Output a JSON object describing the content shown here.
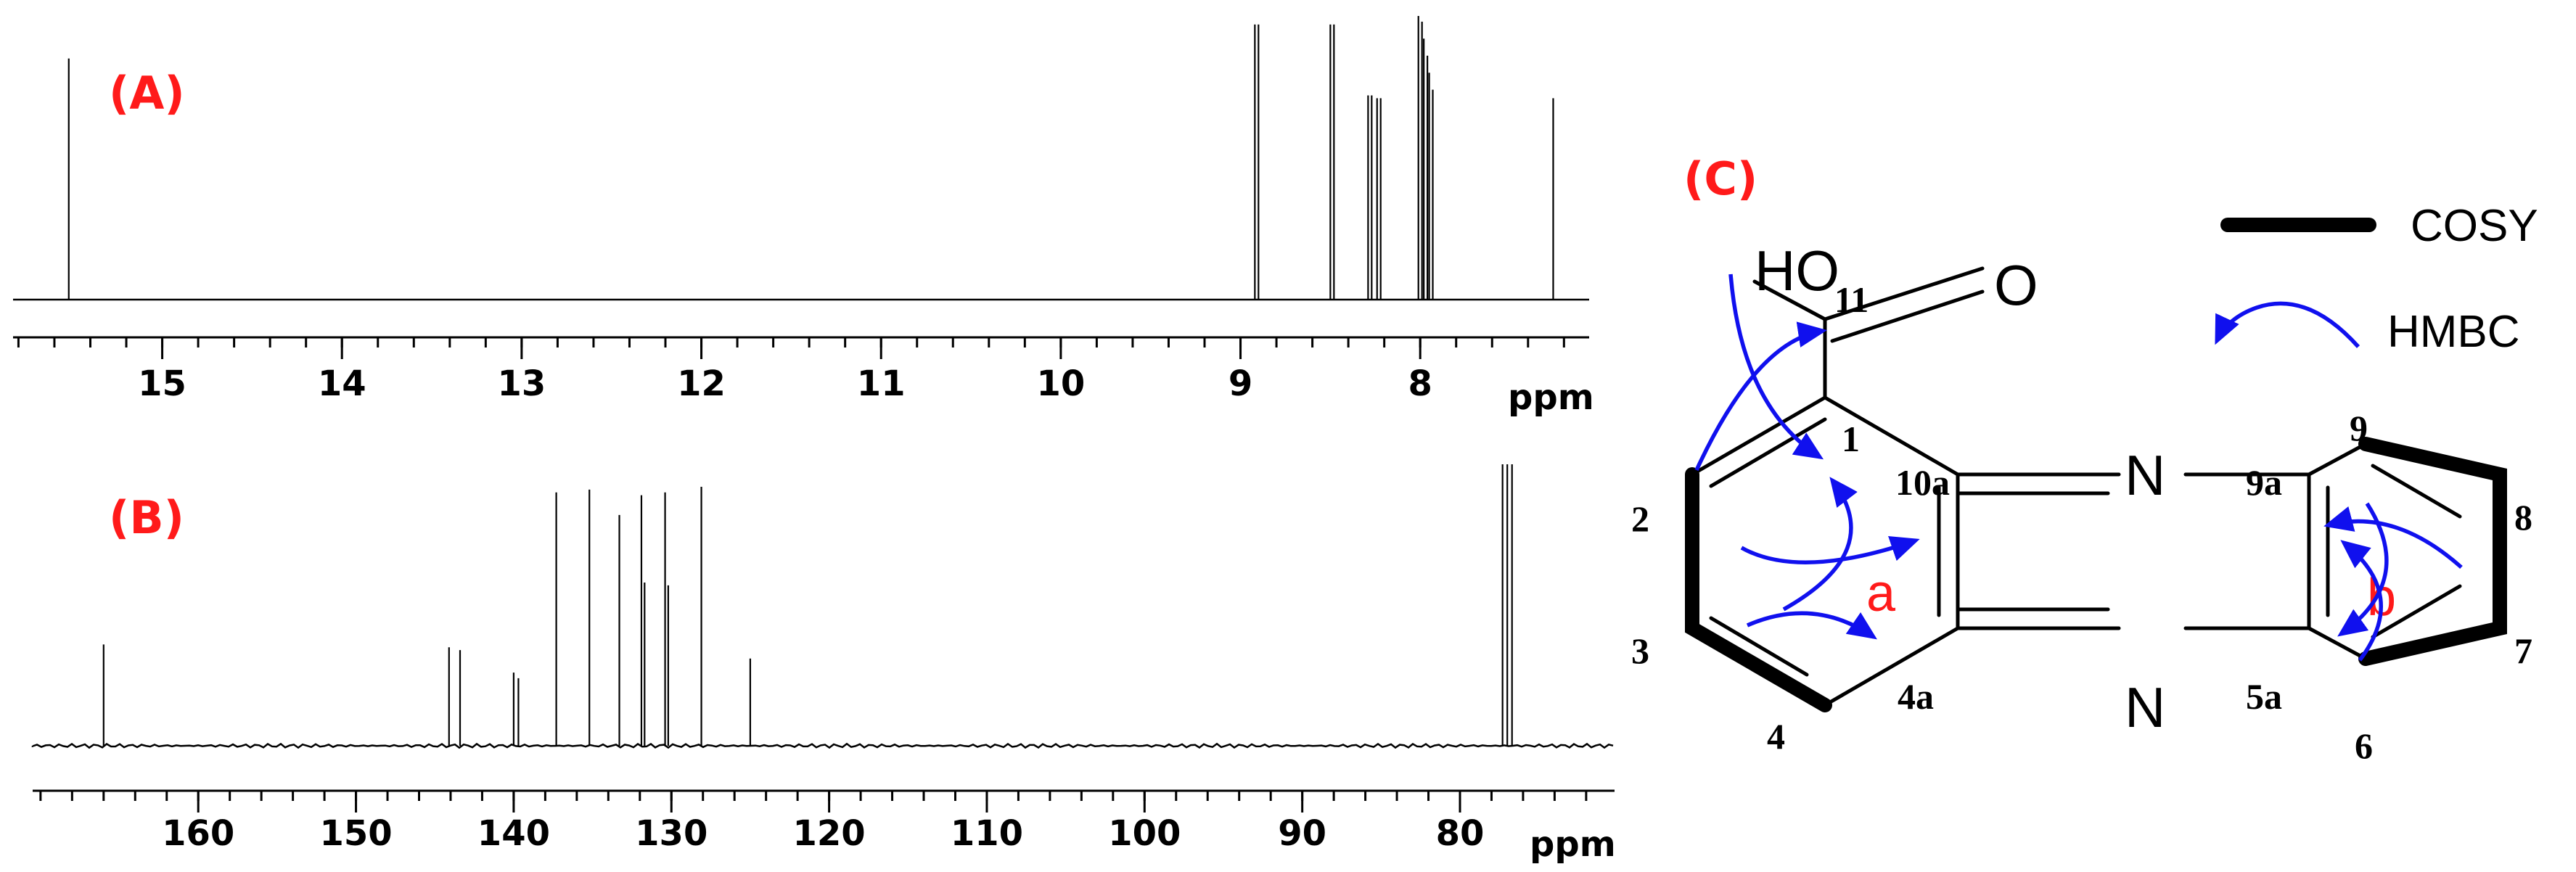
{
  "chart_data": [
    {
      "id": "A",
      "type": "line",
      "panel_label": "(A)",
      "unit": "ppm",
      "axis_reversed": true,
      "xlim": [
        15.83,
        7.06
      ],
      "ticks": [
        "15",
        "14",
        "13",
        "12",
        "11",
        "10",
        "9",
        "8"
      ],
      "tick_values": [
        15,
        14,
        13,
        12,
        11,
        10,
        9,
        8
      ],
      "minor_step": 0.2,
      "peaks": [
        {
          "x": 15.52,
          "h": 0.85
        },
        {
          "x": 8.92,
          "h": 0.97
        },
        {
          "x": 8.9,
          "h": 0.97
        },
        {
          "x": 8.5,
          "h": 0.97
        },
        {
          "x": 8.48,
          "h": 0.97
        },
        {
          "x": 8.29,
          "h": 0.72
        },
        {
          "x": 8.27,
          "h": 0.72
        },
        {
          "x": 8.24,
          "h": 0.71
        },
        {
          "x": 8.22,
          "h": 0.71
        },
        {
          "x": 8.01,
          "h": 1.0
        },
        {
          "x": 7.99,
          "h": 0.98
        },
        {
          "x": 7.98,
          "h": 0.92
        },
        {
          "x": 7.96,
          "h": 0.86
        },
        {
          "x": 7.95,
          "h": 0.8
        },
        {
          "x": 7.93,
          "h": 0.74
        },
        {
          "x": 7.26,
          "h": 0.71
        }
      ]
    },
    {
      "id": "B",
      "type": "line",
      "panel_label": "(B)",
      "unit": "ppm",
      "axis_reversed": true,
      "xlim": [
        170.5,
        70.2
      ],
      "ticks": [
        "160",
        "150",
        "140",
        "130",
        "120",
        "110",
        "100",
        "90",
        "80"
      ],
      "tick_values": [
        160,
        150,
        140,
        130,
        120,
        110,
        100,
        90,
        80
      ],
      "minor_step": 2,
      "peaks": [
        {
          "x": 166.0,
          "h": 0.36
        },
        {
          "x": 144.1,
          "h": 0.35
        },
        {
          "x": 143.4,
          "h": 0.34
        },
        {
          "x": 140.0,
          "h": 0.26
        },
        {
          "x": 139.7,
          "h": 0.24
        },
        {
          "x": 137.3,
          "h": 0.9
        },
        {
          "x": 135.2,
          "h": 0.91
        },
        {
          "x": 133.3,
          "h": 0.82
        },
        {
          "x": 131.9,
          "h": 0.89
        },
        {
          "x": 131.7,
          "h": 0.58
        },
        {
          "x": 130.4,
          "h": 0.9
        },
        {
          "x": 130.2,
          "h": 0.57
        },
        {
          "x": 128.1,
          "h": 0.92
        },
        {
          "x": 125.0,
          "h": 0.31
        },
        {
          "x": 77.3,
          "h": 1.0
        },
        {
          "x": 77.0,
          "h": 1.0
        },
        {
          "x": 76.7,
          "h": 1.0
        }
      ]
    }
  ],
  "structure": {
    "panel_label": "(C)",
    "legend": {
      "cosy_label": "COSY",
      "hmbc_label": "HMBC"
    },
    "atoms": {
      "hydroxyl": "HO",
      "carbonyl_oxygen": "O",
      "nitrogen_top": "N",
      "nitrogen_bottom": "N"
    },
    "numbering": [
      "11",
      "1",
      "2",
      "3",
      "4",
      "10a",
      "4a",
      "9a",
      "5a",
      "9",
      "8",
      "7",
      "6"
    ],
    "ring_labels": [
      "a",
      "b"
    ],
    "colors": {
      "hmbc": "#1010ee",
      "ring_label": "#ff1a1a",
      "panel_label": "#ff1a1a"
    }
  }
}
